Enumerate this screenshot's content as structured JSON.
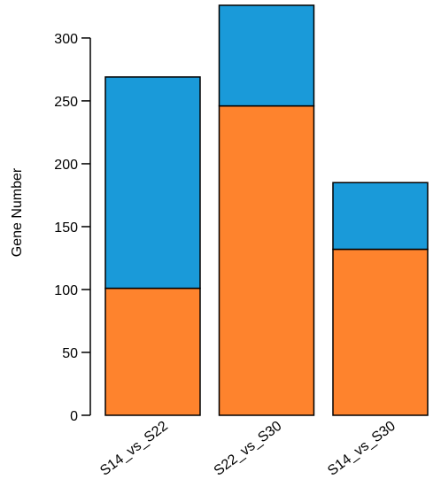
{
  "chart_data": {
    "type": "bar",
    "stacked": true,
    "y_label": "Gene Number",
    "categories": [
      "S14_vs_S22",
      "S22_vs_S30",
      "S14_vs_S30"
    ],
    "series": [
      {
        "color": "#fe832d",
        "values": [
          101,
          246,
          132
        ]
      },
      {
        "color": "#1a9ad9",
        "values": [
          168,
          80,
          53
        ]
      }
    ],
    "ylim": [
      0,
      330
    ],
    "yticks": [
      0,
      50,
      100,
      150,
      200,
      250,
      300
    ]
  }
}
